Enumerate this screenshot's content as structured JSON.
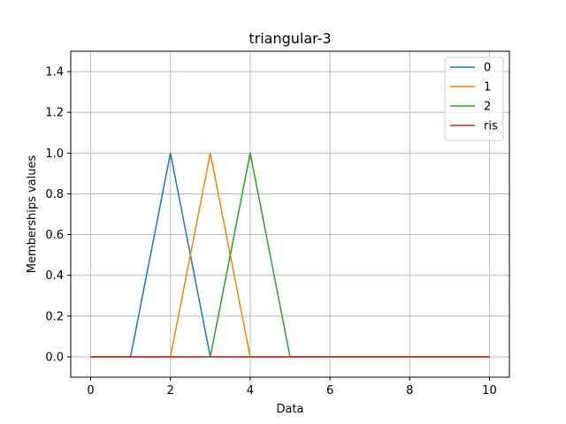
{
  "chart_data": {
    "type": "line",
    "title": "triangular-3",
    "xlabel": "Data",
    "ylabel": "Memberships values",
    "xlim": [
      -0.5,
      10.5
    ],
    "ylim": [
      -0.1,
      1.5
    ],
    "xticks": [
      0,
      2,
      4,
      6,
      8,
      10
    ],
    "yticks": [
      0.0,
      0.2,
      0.4,
      0.6,
      0.8,
      1.0,
      1.2,
      1.4
    ],
    "xtick_labels": [
      "0",
      "2",
      "4",
      "6",
      "8",
      "10"
    ],
    "ytick_labels": [
      "0.0",
      "0.2",
      "0.4",
      "0.6",
      "0.8",
      "1.0",
      "1.2",
      "1.4"
    ],
    "grid": true,
    "legend_position": "top-right",
    "series": [
      {
        "name": "0",
        "color": "#1f77b4",
        "x": [
          0,
          1,
          2,
          3,
          4,
          5,
          6,
          7,
          8,
          9,
          10
        ],
        "y": [
          0,
          0,
          1,
          0,
          0,
          0,
          0,
          0,
          0,
          0,
          0
        ]
      },
      {
        "name": "1",
        "color": "#ff7f0e",
        "x": [
          0,
          1,
          2,
          3,
          4,
          5,
          6,
          7,
          8,
          9,
          10
        ],
        "y": [
          0,
          0,
          0,
          1,
          0,
          0,
          0,
          0,
          0,
          0,
          0
        ]
      },
      {
        "name": "2",
        "color": "#2ca02c",
        "x": [
          0,
          1,
          2,
          3,
          4,
          5,
          6,
          7,
          8,
          9,
          10
        ],
        "y": [
          0,
          0,
          0,
          0,
          1,
          0,
          0,
          0,
          0,
          0,
          0
        ]
      },
      {
        "name": "ris",
        "color": "#d62728",
        "x": [
          0,
          1,
          2,
          3,
          4,
          5,
          6,
          7,
          8,
          9,
          10
        ],
        "y": [
          0,
          0,
          0,
          0,
          0,
          0,
          0,
          0,
          0,
          0,
          0
        ]
      }
    ]
  }
}
